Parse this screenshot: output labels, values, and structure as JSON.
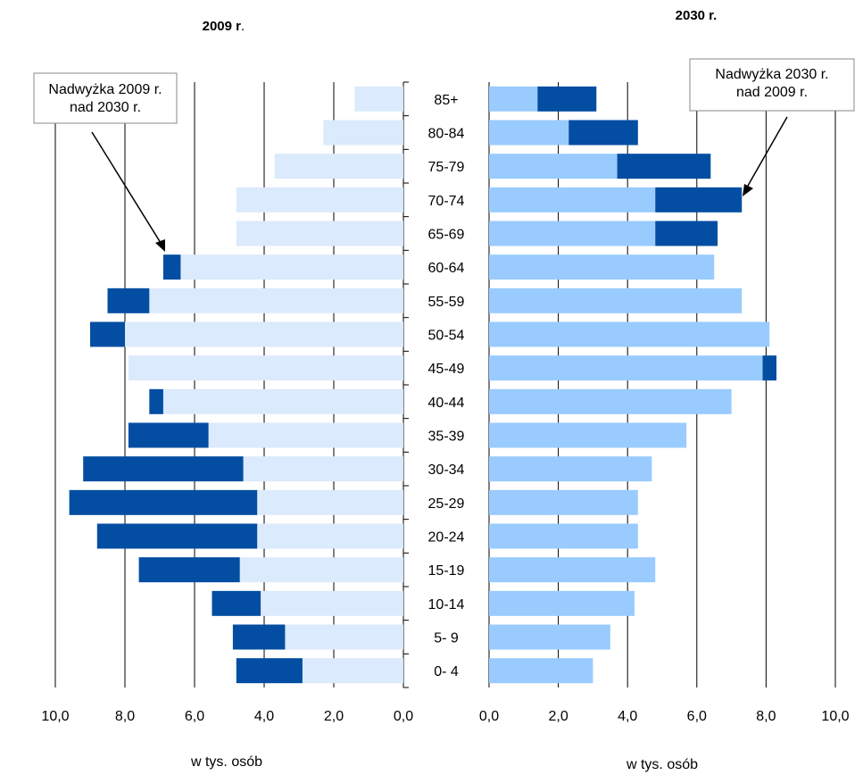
{
  "chart_data": {
    "type": "bar",
    "categories": [
      "85+",
      "80-84",
      "75-79",
      "70-74",
      "65-69",
      "60-64",
      "55-59",
      "50-54",
      "45-49",
      "40-44",
      "35-39",
      "30-34",
      "25-29",
      "20-24",
      "15-19",
      "10-14",
      "5- 9",
      "0- 4"
    ],
    "left": {
      "title_main": "2009 r",
      "title_suffix": ".",
      "xlabel": "w  tys. osób",
      "xlim": [
        10,
        0
      ],
      "xticks": [
        "10,0",
        "8,0",
        "6,0",
        "4,0",
        "2,0",
        "0,0"
      ],
      "series": [
        {
          "values": [
            1.4,
            2.3,
            3.7,
            4.8,
            4.8,
            6.4,
            7.3,
            8.0,
            7.9,
            6.9,
            5.6,
            4.6,
            4.2,
            4.2,
            4.7,
            4.1,
            3.4,
            2.9
          ]
        },
        {
          "values": [
            0,
            0,
            0,
            0,
            0,
            0.5,
            1.2,
            1.0,
            0,
            0.4,
            2.3,
            4.6,
            5.4,
            4.6,
            2.9,
            1.4,
            1.5,
            1.9
          ]
        }
      ],
      "annotation": "Nadwyżka 2009 r. nad 2030 r."
    },
    "right": {
      "title": "2030 r.",
      "xlabel": "w  tys. osób",
      "xlim": [
        0,
        10
      ],
      "xticks": [
        "0,0",
        "2,0",
        "4,0",
        "6,0",
        "8,0",
        "10,0"
      ],
      "series": [
        {
          "values": [
            1.4,
            2.3,
            3.7,
            4.8,
            4.8,
            6.5,
            7.3,
            8.1,
            7.9,
            7.0,
            5.7,
            4.7,
            4.3,
            4.3,
            4.8,
            4.2,
            3.5,
            3.0
          ]
        },
        {
          "values": [
            1.7,
            2.0,
            2.7,
            2.5,
            1.8,
            0,
            0,
            0,
            0.4,
            0,
            0,
            0,
            0,
            0,
            0,
            0,
            0,
            0
          ]
        }
      ],
      "annotation": "Nadwyżka 2030 r. nad 2009 r."
    },
    "colors": {
      "left_base": "#dbeafd",
      "right_base": "#99cbff",
      "surplus": "#034ea2",
      "grid": "#000000"
    }
  }
}
